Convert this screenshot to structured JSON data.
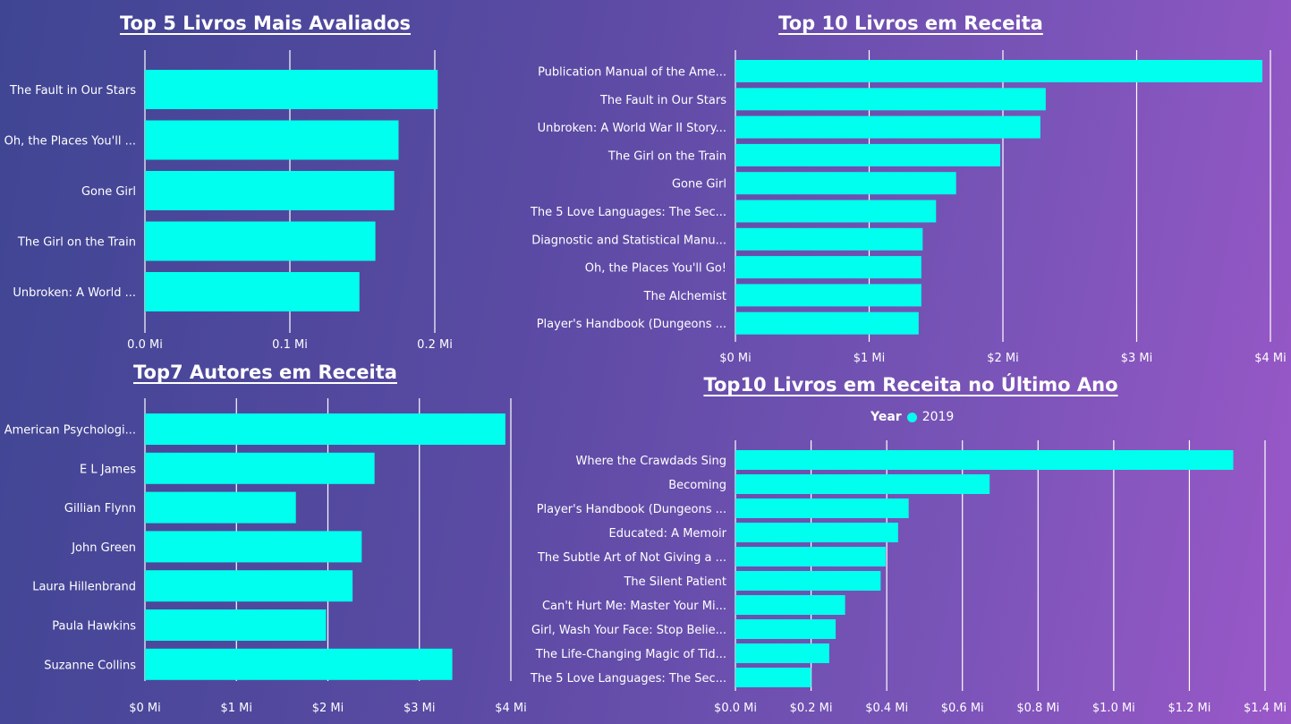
{
  "colors": {
    "bar": "#00ffee",
    "grid": "#ffffff",
    "text": "#ffffff"
  },
  "chart_data": [
    {
      "id": "c1",
      "type": "bar",
      "orientation": "horizontal",
      "title": "Top 5 Livros Mais Avaliados",
      "categories": [
        "The Fault in Our Stars",
        "Oh, the Places You'll ...",
        "Gone Girl",
        "The Girl on the Train",
        "Unbroken: A World ..."
      ],
      "values": [
        0.202,
        0.175,
        0.172,
        0.159,
        0.148
      ],
      "xlim": [
        0,
        0.2
      ],
      "ticks": [
        0,
        0.1,
        0.2
      ],
      "tick_labels": [
        "0.0 Mi",
        "0.1 Mi",
        "0.2 Mi"
      ],
      "grid": true
    },
    {
      "id": "c2",
      "type": "bar",
      "orientation": "horizontal",
      "title": "Top 10 Livros em Receita",
      "categories": [
        "Publication Manual of the Ame...",
        "The Fault in Our Stars",
        "Unbroken: A World War II Story...",
        "The Girl on the Train",
        "Gone Girl",
        "The 5 Love Languages: The Sec...",
        "Diagnostic and Statistical Manu...",
        "Oh, the Places You'll Go!",
        "The Alchemist",
        "Player's Handbook (Dungeons ..."
      ],
      "values": [
        3.94,
        2.32,
        2.28,
        1.98,
        1.65,
        1.5,
        1.4,
        1.39,
        1.39,
        1.37
      ],
      "xlim": [
        0,
        4
      ],
      "ticks": [
        0,
        1,
        2,
        3,
        4
      ],
      "tick_labels": [
        "$0 Mi",
        "$1 Mi",
        "$2 Mi",
        "$3 Mi",
        "$4 Mi"
      ],
      "grid": true
    },
    {
      "id": "c3",
      "type": "bar",
      "orientation": "horizontal",
      "title": "Top7 Autores em Receita",
      "categories": [
        "American Psychologi...",
        "E L James",
        "Gillian Flynn",
        "John Green",
        "Laura Hillenbrand",
        "Paula Hawkins",
        "Suzanne Collins"
      ],
      "values": [
        3.94,
        2.51,
        1.65,
        2.37,
        2.27,
        1.98,
        3.36
      ],
      "xlim": [
        0,
        4
      ],
      "ticks": [
        0,
        1,
        2,
        3,
        4
      ],
      "tick_labels": [
        "$0 Mi",
        "$1 Mi",
        "$2 Mi",
        "$3 Mi",
        "$4 Mi"
      ],
      "grid": true
    },
    {
      "id": "c4",
      "type": "bar",
      "orientation": "horizontal",
      "title": "Top10 Livros em Receita no Último Ano",
      "legend": {
        "title": "Year",
        "entries": [
          "2019"
        ]
      },
      "categories": [
        "Where the Crawdads Sing",
        "Becoming",
        "Player's Handbook (Dungeons ...",
        "Educated: A Memoir",
        "The Subtle Art of Not Giving a ...",
        "The Silent Patient",
        "Can't Hurt Me: Master Your Mi...",
        "Girl, Wash Your Face: Stop Belie...",
        "The Life-Changing Magic of Tid...",
        "The 5 Love Languages: The Sec..."
      ],
      "values": [
        1.316,
        0.672,
        0.458,
        0.43,
        0.397,
        0.384,
        0.29,
        0.265,
        0.248,
        0.2
      ],
      "xlim": [
        0,
        1.4
      ],
      "ticks": [
        0,
        0.2,
        0.4,
        0.6,
        0.8,
        1.0,
        1.2,
        1.4
      ],
      "tick_labels": [
        "$0.0 Mi",
        "$0.2 Mi",
        "$0.4 Mi",
        "$0.6 Mi",
        "$0.8 Mi",
        "$1.0 Mi",
        "$1.2 Mi",
        "$1.4 Mi"
      ],
      "grid": true
    }
  ]
}
